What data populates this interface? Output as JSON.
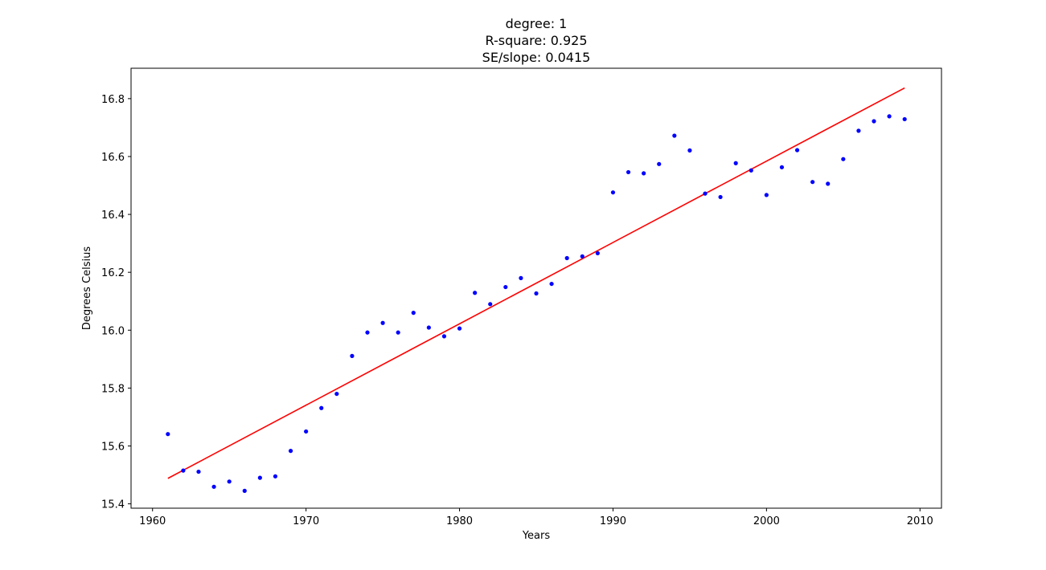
{
  "chart_data": {
    "type": "scatter",
    "title_lines": [
      "degree: 1",
      "R-square: 0.925",
      "SE/slope: 0.0415"
    ],
    "xlabel": "Years",
    "ylabel": "Degrees Celsius",
    "xlim": [
      1958.6,
      2011.4
    ],
    "ylim": [
      15.385,
      16.905
    ],
    "x_ticks": [
      1960,
      1970,
      1980,
      1990,
      2000,
      2010
    ],
    "y_ticks": [
      15.4,
      15.6,
      15.8,
      16.0,
      16.2,
      16.4,
      16.6,
      16.8
    ],
    "y_tick_labels": [
      "15.4",
      "15.6",
      "15.8",
      "16.0",
      "16.2",
      "16.4",
      "16.6",
      "16.8"
    ],
    "grid": false,
    "series": [
      {
        "kind": "points",
        "color": "#0000ff",
        "x": [
          1961,
          1962,
          1963,
          1964,
          1965,
          1966,
          1967,
          1968,
          1969,
          1970,
          1971,
          1972,
          1973,
          1974,
          1975,
          1976,
          1977,
          1978,
          1979,
          1980,
          1981,
          1982,
          1983,
          1984,
          1985,
          1986,
          1987,
          1988,
          1989,
          1990,
          1991,
          1992,
          1993,
          1994,
          1995,
          1996,
          1997,
          1998,
          1999,
          2000,
          2001,
          2002,
          2003,
          2004,
          2005,
          2006,
          2007,
          2008,
          2009
        ],
        "y": [
          15.641,
          15.515,
          15.511,
          15.459,
          15.477,
          15.445,
          15.49,
          15.495,
          15.583,
          15.65,
          15.731,
          15.78,
          15.911,
          15.992,
          16.025,
          15.992,
          16.06,
          16.009,
          15.979,
          16.006,
          16.129,
          16.09,
          16.149,
          16.18,
          16.127,
          16.16,
          16.249,
          16.255,
          16.266,
          16.476,
          16.546,
          16.542,
          16.574,
          16.672,
          16.621,
          16.472,
          16.46,
          16.577,
          16.552,
          16.467,
          16.563,
          16.622,
          16.512,
          16.506,
          16.591,
          16.689,
          16.722,
          16.739,
          16.729
        ]
      },
      {
        "kind": "line",
        "color": "#ff0000",
        "x": [
          1961,
          2009
        ],
        "y": [
          15.488,
          16.837
        ]
      }
    ]
  }
}
